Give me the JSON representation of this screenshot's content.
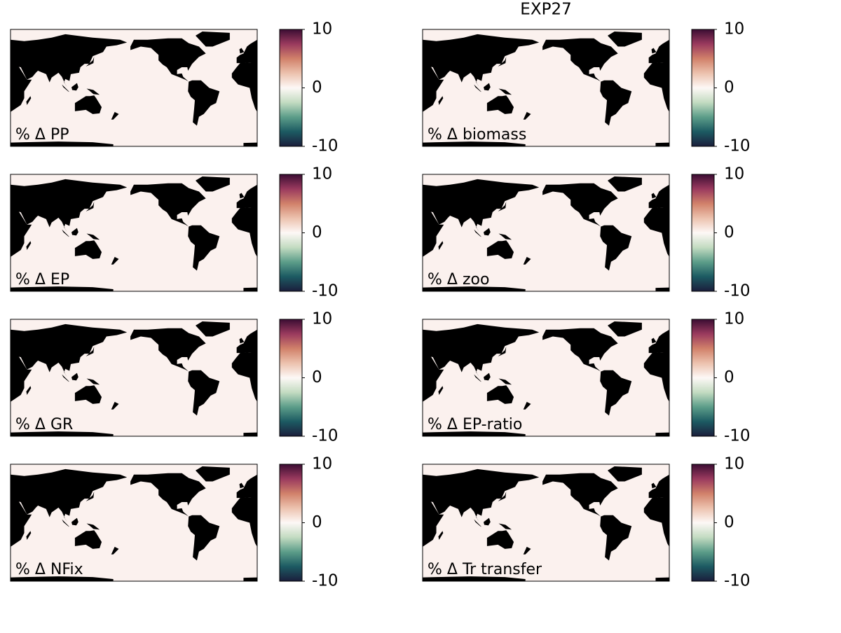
{
  "title": "EXP27",
  "colorbar": {
    "clim": [
      -10,
      10
    ],
    "ticks": [
      10,
      0,
      -10
    ],
    "colormap": [
      "#1b1e3c",
      "#1c5a62",
      "#5c9d89",
      "#c3dbc1",
      "#fdf8f6",
      "#ecc2ae",
      "#d1816a",
      "#9a3a5e",
      "#3b0d33"
    ]
  },
  "panels": [
    {
      "label": "% Δ PP"
    },
    {
      "label": "% Δ biomass"
    },
    {
      "label": "% Δ EP"
    },
    {
      "label": "% Δ zoo"
    },
    {
      "label": "% Δ GR"
    },
    {
      "label": "% Δ EP-ratio"
    },
    {
      "label": "% Δ NFix"
    },
    {
      "label": "% Δ Tr transfer"
    }
  ]
}
